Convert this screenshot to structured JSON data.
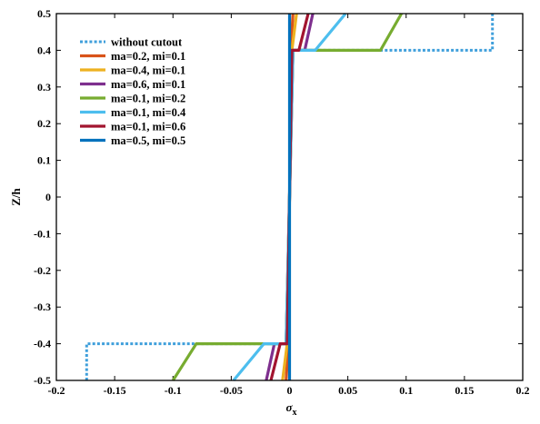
{
  "chart_data": {
    "type": "line",
    "xlabel": "σ",
    "xlabel_sub": "x",
    "ylabel": "Z/h",
    "xlim": [
      -0.2,
      0.2
    ],
    "ylim": [
      -0.5,
      0.5
    ],
    "xticks": [
      -0.2,
      -0.15,
      -0.1,
      -0.05,
      0,
      0.05,
      0.1,
      0.15,
      0.2
    ],
    "xtick_labels": [
      "-0.2",
      "-0.15",
      "-0.1",
      "-0.05",
      "0",
      "0.05",
      "0.1",
      "0.15",
      "0.2"
    ],
    "yticks": [
      0.5,
      0.4,
      0.3,
      0.2,
      0.1,
      0,
      -0.1,
      -0.2,
      -0.3,
      -0.4,
      -0.5
    ],
    "ytick_labels": [
      "0.5",
      "0.4",
      "0.3",
      "0.2",
      "0.1",
      "0",
      "-0.1",
      "-0.2",
      "-0.3",
      "-0.4",
      "-0.5"
    ],
    "grid": false,
    "legend_position": "top-left",
    "series": [
      {
        "name": "without cutout",
        "color": "#3f9fdb",
        "dashed": true,
        "x": [
          -0.174,
          -0.174,
          -0.17,
          0.0,
          0.0,
          0.17,
          0.174,
          0.174
        ],
        "y": [
          -0.5,
          -0.4,
          -0.4,
          -0.4,
          0.4,
          0.4,
          0.4,
          0.5
        ]
      },
      {
        "name": "ma=0.2, mi=0.1",
        "color": "#d95319",
        "x": [
          -0.003,
          -0.001,
          -0.001,
          0.001,
          0.001,
          0.003
        ],
        "y": [
          -0.5,
          -0.4,
          -0.4,
          0.4,
          0.4,
          0.5
        ]
      },
      {
        "name": "ma=0.4, mi=0.1",
        "color": "#edb120",
        "x": [
          -0.006,
          -0.002,
          -0.002,
          0.002,
          0.002,
          0.006
        ],
        "y": [
          -0.5,
          -0.4,
          -0.4,
          0.4,
          0.4,
          0.5
        ]
      },
      {
        "name": "ma=0.6, mi=0.1",
        "color": "#7e2f8e",
        "x": [
          -0.02,
          -0.013,
          -0.003,
          -0.003,
          0.003,
          0.003,
          0.013,
          0.02
        ],
        "y": [
          -0.5,
          -0.4,
          -0.4,
          -0.4,
          0.4,
          0.4,
          0.4,
          0.5
        ]
      },
      {
        "name": "ma=0.1, mi=0.2",
        "color": "#77ac30",
        "x": [
          -0.1,
          -0.08,
          -0.003,
          -0.003,
          0.003,
          0.003,
          0.078,
          0.096
        ],
        "y": [
          -0.5,
          -0.4,
          -0.4,
          -0.4,
          0.4,
          0.4,
          0.4,
          0.5
        ]
      },
      {
        "name": "ma=0.1, mi=0.4",
        "color": "#4dbeee",
        "x": [
          -0.048,
          -0.022,
          -0.003,
          -0.003,
          0.003,
          0.003,
          0.022,
          0.048
        ],
        "y": [
          -0.5,
          -0.4,
          -0.4,
          -0.4,
          0.4,
          0.4,
          0.4,
          0.5
        ]
      },
      {
        "name": "ma=0.1, mi=0.6",
        "color": "#a2142f",
        "x": [
          -0.016,
          -0.008,
          -0.002,
          -0.002,
          0.002,
          0.002,
          0.008,
          0.016
        ],
        "y": [
          -0.5,
          -0.4,
          -0.4,
          -0.4,
          0.4,
          0.4,
          0.4,
          0.5
        ]
      },
      {
        "name": "ma=0.5, mi=0.5",
        "color": "#0072bd",
        "x": [
          0.0,
          0.0
        ],
        "y": [
          -0.5,
          0.5
        ]
      }
    ]
  }
}
